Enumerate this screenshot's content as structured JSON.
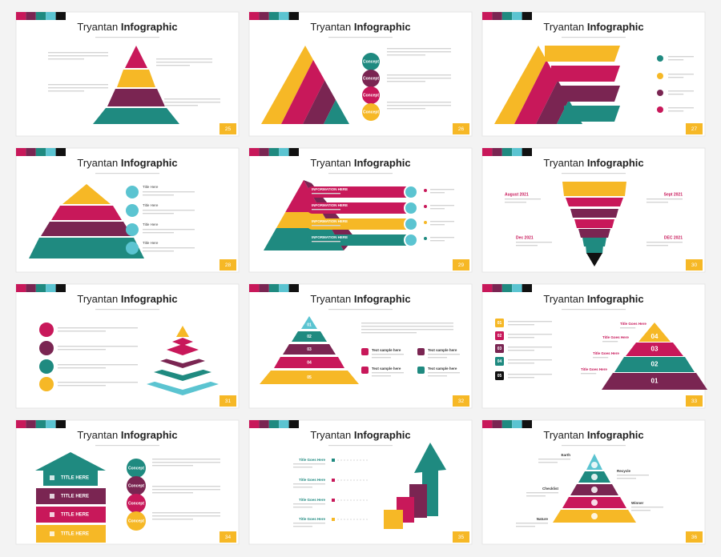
{
  "slides": [
    {
      "title_light": "Tryantan",
      "title_bold": "Infographic",
      "number": 25,
      "labels": []
    },
    {
      "title_light": "Tryantan",
      "title_bold": "Infographic",
      "number": 26,
      "labels": [
        "Concept",
        "Concept",
        "Concept",
        "Concept"
      ]
    },
    {
      "title_light": "Tryantan",
      "title_bold": "Infographic",
      "number": 27,
      "labels": []
    },
    {
      "title_light": "Tryantan",
      "title_bold": "Infographic",
      "number": 28,
      "labels": [
        "Title Here",
        "Title Here",
        "Title Here",
        "Title Here"
      ]
    },
    {
      "title_light": "Tryantan",
      "title_bold": "Infographic",
      "number": 29,
      "labels": [
        "INFORMATION HERE",
        "INFORMATION HERE",
        "INFORMATION HERE",
        "INFORMATION HERE"
      ]
    },
    {
      "title_light": "Tryantan",
      "title_bold": "Infographic",
      "number": 30,
      "labels": [
        "August 2021",
        "Sept 2021",
        "Dec 2021",
        "DEC 2021"
      ]
    },
    {
      "title_light": "Tryantan",
      "title_bold": "Infographic",
      "number": 31,
      "labels": []
    },
    {
      "title_light": "Tryantan",
      "title_bold": "Infographic",
      "number": 32,
      "labels": [
        "01",
        "02",
        "03",
        "04",
        "05",
        "Text sample here",
        "Text sample here",
        "Text sample here",
        "Text sample here"
      ]
    },
    {
      "title_light": "Tryantan",
      "title_bold": "Infographic",
      "number": 33,
      "labels": [
        "01",
        "02",
        "03",
        "04",
        "05",
        "04",
        "03",
        "02",
        "01",
        "Title Goes Here",
        "Title Goes Here",
        "Title Goes Here",
        "Title Goes Here"
      ]
    },
    {
      "title_light": "Tryantan",
      "title_bold": "Infographic",
      "number": 34,
      "labels": [
        "TITLE HERE",
        "TITLE HERE",
        "TITLE HERE",
        "TITLE HERE",
        "Concept",
        "Concept",
        "Concept",
        "Concept"
      ]
    },
    {
      "title_light": "Tryantan",
      "title_bold": "Infographic",
      "number": 35,
      "labels": [
        "Title Goes Here",
        "Title Goes Here",
        "Title Goes Here",
        "Title Goes Here"
      ]
    },
    {
      "title_light": "Tryantan",
      "title_bold": "Infographic",
      "number": 36,
      "labels": [
        "Earth",
        "Recycle",
        "Checklist",
        "Winner",
        "Nature"
      ]
    }
  ]
}
